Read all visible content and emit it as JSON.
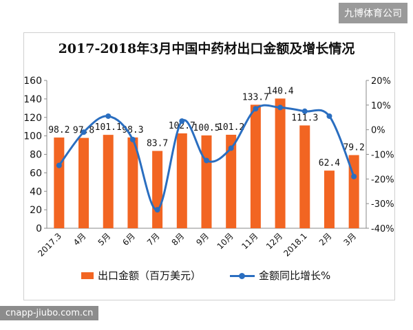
{
  "watermark_brand": "九博体育公司",
  "watermark_url": "cnapp-jiubo.com.cn",
  "chart_data": {
    "type": "bar",
    "title": "2017-2018年3月中国中药材出口金额及增长情况",
    "categories": [
      "2017.3",
      "4月",
      "5月",
      "6月",
      "7月",
      "8月",
      "9月",
      "10月",
      "11月",
      "12月",
      "2018.1",
      "2月",
      "3月"
    ],
    "series": [
      {
        "name": "出口金额（百万美元）",
        "type": "bar",
        "axis": "left",
        "values": [
          98.2,
          97.8,
          101.1,
          98.3,
          83.7,
          102.7,
          100.5,
          101.2,
          133.7,
          140.4,
          111.3,
          62.4,
          79.2
        ],
        "labels": [
          "98.2",
          "97.8",
          "101.1",
          "98.3",
          "83.7",
          "102.7",
          "100.5",
          "101.2",
          "133.7",
          "140.4",
          "111.3",
          "62.4",
          "79.2"
        ]
      },
      {
        "name": "金额同比增长%",
        "type": "line",
        "axis": "right",
        "values": [
          -14.5,
          -1,
          5.5,
          -4,
          -32.5,
          3.5,
          -12.5,
          -7.5,
          8.5,
          9,
          7.5,
          5.5,
          -19
        ]
      }
    ],
    "y_left": {
      "min": 0,
      "max": 160,
      "ticks": [
        "0",
        "20",
        "40",
        "60",
        "80",
        "100",
        "120",
        "140",
        "160"
      ]
    },
    "y_right": {
      "min": -40,
      "max": 20,
      "ticks": [
        "-40%",
        "-30%",
        "-20%",
        "-10%",
        "0%",
        "10%",
        "20%"
      ]
    },
    "colors": {
      "bar": "#f26522",
      "line": "#2a6ec0"
    },
    "legend_position": "bottom"
  }
}
